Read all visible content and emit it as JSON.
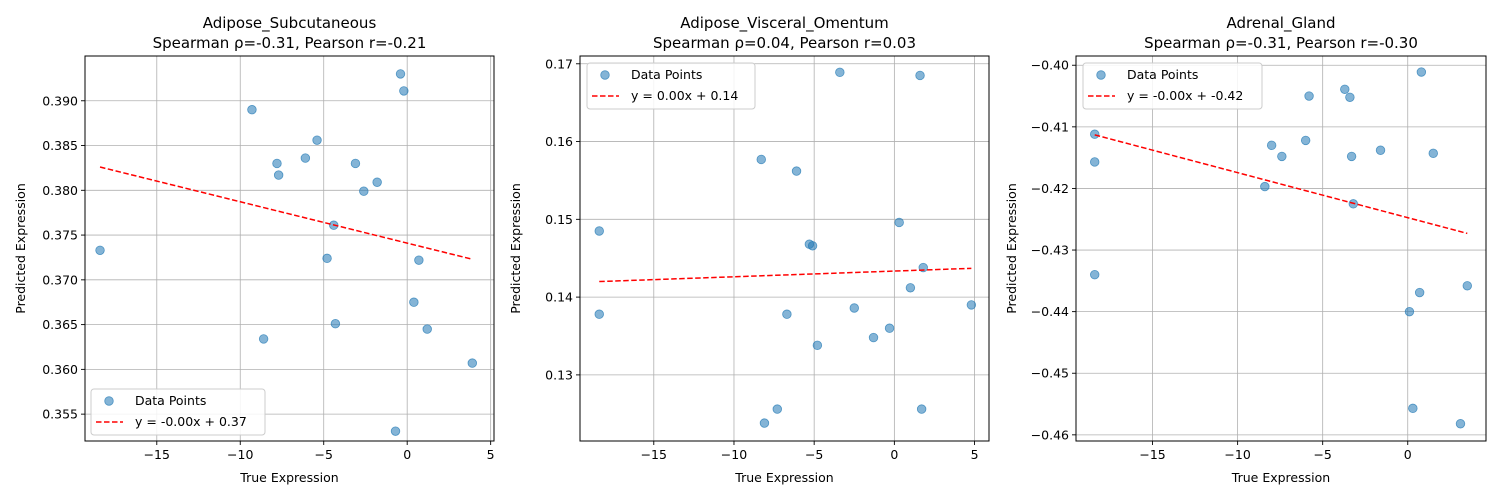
{
  "chart_data": [
    {
      "type": "scatter",
      "title_line1": "Adipose_Subcutaneous",
      "title_line2": "Spearman ρ=-0.31, Pearson r=-0.21",
      "xlabel": "True Expression",
      "ylabel": "Predicted Expression",
      "xlim": [
        -19.3,
        5.2
      ],
      "ylim": [
        0.352,
        0.395
      ],
      "xticks": [
        -15,
        -10,
        -5,
        0,
        5
      ],
      "xtick_labels": [
        "−15",
        "−10",
        "−5",
        "0",
        "5"
      ],
      "yticks": [
        0.355,
        0.36,
        0.365,
        0.37,
        0.375,
        0.38,
        0.385,
        0.39
      ],
      "ytick_labels": [
        "0.355",
        "0.360",
        "0.365",
        "0.370",
        "0.375",
        "0.380",
        "0.385",
        "0.390"
      ],
      "grid": true,
      "legend_position": "lower-left",
      "legend": [
        "Data Points",
        "y = -0.00x + 0.37"
      ],
      "points_color": "#1f77b4",
      "fit_color": "#ff0000",
      "points": [
        {
          "x": -18.4,
          "y": 0.3733
        },
        {
          "x": -9.3,
          "y": 0.389
        },
        {
          "x": -7.8,
          "y": 0.383
        },
        {
          "x": -7.7,
          "y": 0.3817
        },
        {
          "x": -8.6,
          "y": 0.3634
        },
        {
          "x": -6.1,
          "y": 0.3836
        },
        {
          "x": -5.4,
          "y": 0.3856
        },
        {
          "x": -4.8,
          "y": 0.3724
        },
        {
          "x": -4.4,
          "y": 0.3761
        },
        {
          "x": -4.3,
          "y": 0.3651
        },
        {
          "x": -3.1,
          "y": 0.383
        },
        {
          "x": -2.6,
          "y": 0.3799
        },
        {
          "x": -1.8,
          "y": 0.3809
        },
        {
          "x": -0.4,
          "y": 0.393
        },
        {
          "x": -0.2,
          "y": 0.3911
        },
        {
          "x": 0.4,
          "y": 0.3675
        },
        {
          "x": 0.7,
          "y": 0.3722
        },
        {
          "x": 1.2,
          "y": 0.3645
        },
        {
          "x": -0.7,
          "y": 0.3531
        },
        {
          "x": 3.9,
          "y": 0.3607
        }
      ],
      "fit": [
        {
          "x": -18.4,
          "y": 0.3826
        },
        {
          "x": 3.9,
          "y": 0.3723
        }
      ]
    },
    {
      "type": "scatter",
      "title_line1": "Adipose_Visceral_Omentum",
      "title_line2": "Spearman ρ=0.04, Pearson r=0.03",
      "xlabel": "True Expression",
      "ylabel": "Predicted Expression",
      "xlim": [
        -19.6,
        5.9
      ],
      "ylim": [
        0.1215,
        0.171
      ],
      "xticks": [
        -15,
        -10,
        -5,
        0,
        5
      ],
      "xtick_labels": [
        "−15",
        "−10",
        "−5",
        "0",
        "5"
      ],
      "yticks": [
        0.13,
        0.14,
        0.15,
        0.16,
        0.17
      ],
      "ytick_labels": [
        "0.13",
        "0.14",
        "0.15",
        "0.16",
        "0.17"
      ],
      "grid": true,
      "legend_position": "top-left",
      "legend": [
        "Data Points",
        "y = 0.00x + 0.14"
      ],
      "points_color": "#1f77b4",
      "fit_color": "#ff0000",
      "points": [
        {
          "x": -18.4,
          "y": 0.1485
        },
        {
          "x": -18.4,
          "y": 0.1378
        },
        {
          "x": -8.3,
          "y": 0.1577
        },
        {
          "x": -8.1,
          "y": 0.1238
        },
        {
          "x": -7.3,
          "y": 0.1256
        },
        {
          "x": -6.7,
          "y": 0.1378
        },
        {
          "x": -6.1,
          "y": 0.1562
        },
        {
          "x": -5.3,
          "y": 0.1468
        },
        {
          "x": -5.1,
          "y": 0.1466
        },
        {
          "x": -4.8,
          "y": 0.1338
        },
        {
          "x": -3.4,
          "y": 0.1689
        },
        {
          "x": -2.5,
          "y": 0.1386
        },
        {
          "x": -1.3,
          "y": 0.1348
        },
        {
          "x": -0.3,
          "y": 0.136
        },
        {
          "x": 0.3,
          "y": 0.1496
        },
        {
          "x": 1.0,
          "y": 0.1412
        },
        {
          "x": 1.6,
          "y": 0.1685
        },
        {
          "x": 1.7,
          "y": 0.1256
        },
        {
          "x": 1.8,
          "y": 0.1438
        },
        {
          "x": 4.8,
          "y": 0.139
        }
      ],
      "fit": [
        {
          "x": -18.4,
          "y": 0.142
        },
        {
          "x": 4.8,
          "y": 0.1437
        }
      ]
    },
    {
      "type": "scatter",
      "title_line1": "Adrenal_Gland",
      "title_line2": "Spearman ρ=-0.31, Pearson r=-0.30",
      "xlabel": "True Expression",
      "ylabel": "Predicted Expression",
      "xlim": [
        -19.5,
        4.6
      ],
      "ylim": [
        -0.461,
        -0.3985
      ],
      "xticks": [
        -15,
        -10,
        -5,
        0
      ],
      "xtick_labels": [
        "−15",
        "−10",
        "−5",
        "0"
      ],
      "yticks": [
        -0.4,
        -0.41,
        -0.42,
        -0.43,
        -0.44,
        -0.45,
        -0.46
      ],
      "ytick_labels": [
        "−0.40",
        "−0.41",
        "−0.42",
        "−0.43",
        "−0.44",
        "−0.45",
        "−0.46"
      ],
      "grid": true,
      "legend_position": "top-left",
      "legend": [
        "Data Points",
        "y = -0.00x + -0.42"
      ],
      "points_color": "#1f77b4",
      "fit_color": "#ff0000",
      "points": [
        {
          "x": -18.4,
          "y": -0.4112
        },
        {
          "x": -18.4,
          "y": -0.4157
        },
        {
          "x": -18.4,
          "y": -0.434
        },
        {
          "x": -8.4,
          "y": -0.4197
        },
        {
          "x": -8.0,
          "y": -0.413
        },
        {
          "x": -7.4,
          "y": -0.4148
        },
        {
          "x": -6.0,
          "y": -0.4122
        },
        {
          "x": -5.8,
          "y": -0.405
        },
        {
          "x": -3.7,
          "y": -0.4039
        },
        {
          "x": -3.4,
          "y": -0.4052
        },
        {
          "x": -3.3,
          "y": -0.4148
        },
        {
          "x": -3.2,
          "y": -0.4225
        },
        {
          "x": -1.6,
          "y": -0.4138
        },
        {
          "x": 0.1,
          "y": -0.44
        },
        {
          "x": 0.3,
          "y": -0.4557
        },
        {
          "x": 0.7,
          "y": -0.4369
        },
        {
          "x": 0.8,
          "y": -0.4011
        },
        {
          "x": 1.5,
          "y": -0.4143
        },
        {
          "x": 3.1,
          "y": -0.4582
        },
        {
          "x": 3.5,
          "y": -0.4358
        }
      ],
      "fit": [
        {
          "x": -18.4,
          "y": -0.4113
        },
        {
          "x": 3.5,
          "y": -0.4273
        }
      ]
    }
  ]
}
